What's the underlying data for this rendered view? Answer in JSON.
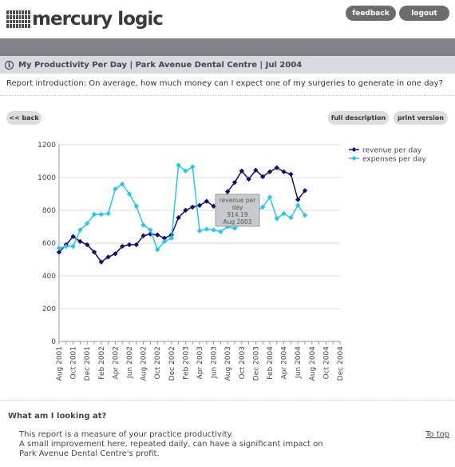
{
  "header": {
    "logo_text": "mercury logic",
    "feedback_label": "feedback",
    "logout_label": "logout"
  },
  "title_bar": {
    "title": "My Productivity Per Day | Park Avenue Dental Centre | Jul 2004"
  },
  "intro": "Report introduction: On average, how much money can I expect one of my surgeries to generate in one day?",
  "toolbar": {
    "back_label": "<< back",
    "full_description_label": "full description",
    "print_version_label": "print version"
  },
  "chart_data": {
    "type": "line",
    "x": [
      "Aug 2001",
      "Sep 2001",
      "Oct 2001",
      "Nov 2001",
      "Dec 2001",
      "Jan 2002",
      "Feb 2002",
      "Mar 2002",
      "Apr 2002",
      "May 2002",
      "Jun 2002",
      "Jul 2002",
      "Aug 2002",
      "Sep 2002",
      "Oct 2002",
      "Nov 2002",
      "Dec 2002",
      "Jan 2003",
      "Feb 2003",
      "Mar 2003",
      "Apr 2003",
      "May 2003",
      "Jun 2003",
      "Jul 2003",
      "Aug 2003",
      "Sep 2003",
      "Oct 2003",
      "Nov 2003",
      "Dec 2003",
      "Jan 2004",
      "Feb 2004",
      "Mar 2004",
      "Apr 2004",
      "May 2004",
      "Jun 2004",
      "Jul 2004"
    ],
    "x_tick_labels": [
      "Aug 2001",
      "Oct 2001",
      "Dec 2001",
      "Feb 2002",
      "Apr 2002",
      "Jun 2002",
      "Aug 2002",
      "Oct 2002",
      "Dec 2002",
      "Feb 2003",
      "Apr 2003",
      "Jun 2003",
      "Aug 2003",
      "Oct 2003",
      "Dec 2003",
      "Feb 2004",
      "Apr 2004",
      "Jun 2004",
      "Aug 2004",
      "Oct 2004",
      "Dec 2004"
    ],
    "x_tick_count": 41,
    "y_ticks": [
      0,
      200,
      400,
      600,
      800,
      1000,
      1200
    ],
    "ylim": [
      0,
      1200
    ],
    "series": [
      {
        "name": "revenue per day",
        "color": "#0f0f6e",
        "values": [
          545,
          590,
          640,
          610,
          590,
          545,
          485,
          515,
          535,
          580,
          590,
          590,
          645,
          655,
          650,
          630,
          650,
          755,
          800,
          820,
          830,
          855,
          825,
          810,
          914.19,
          970,
          1040,
          990,
          1045,
          1005,
          1035,
          1060,
          1035,
          1020,
          865,
          920
        ]
      },
      {
        "name": "expenses per day",
        "color": "#22c7ee",
        "values": [
          570,
          580,
          580,
          680,
          720,
          775,
          775,
          780,
          930,
          960,
          900,
          825,
          710,
          680,
          560,
          610,
          630,
          1075,
          1040,
          1065,
          675,
          685,
          680,
          670,
          700,
          690,
          720,
          760,
          790,
          820,
          880,
          750,
          780,
          755,
          830,
          770
        ]
      }
    ],
    "legend_position": "top-right",
    "grid": true,
    "tooltip": {
      "series": "revenue per day",
      "line1": "revenue per",
      "line2": "day",
      "value": "914.19",
      "date": "Aug 2003"
    }
  },
  "section": {
    "what_title": "What am I looking at?",
    "body_lines": [
      "This report is a measure of your practice productivity.",
      "A small improvement here, repeated daily, can have a significant impact on",
      "Park Avenue Dental Centre's profit."
    ],
    "to_top_label": "To top"
  }
}
